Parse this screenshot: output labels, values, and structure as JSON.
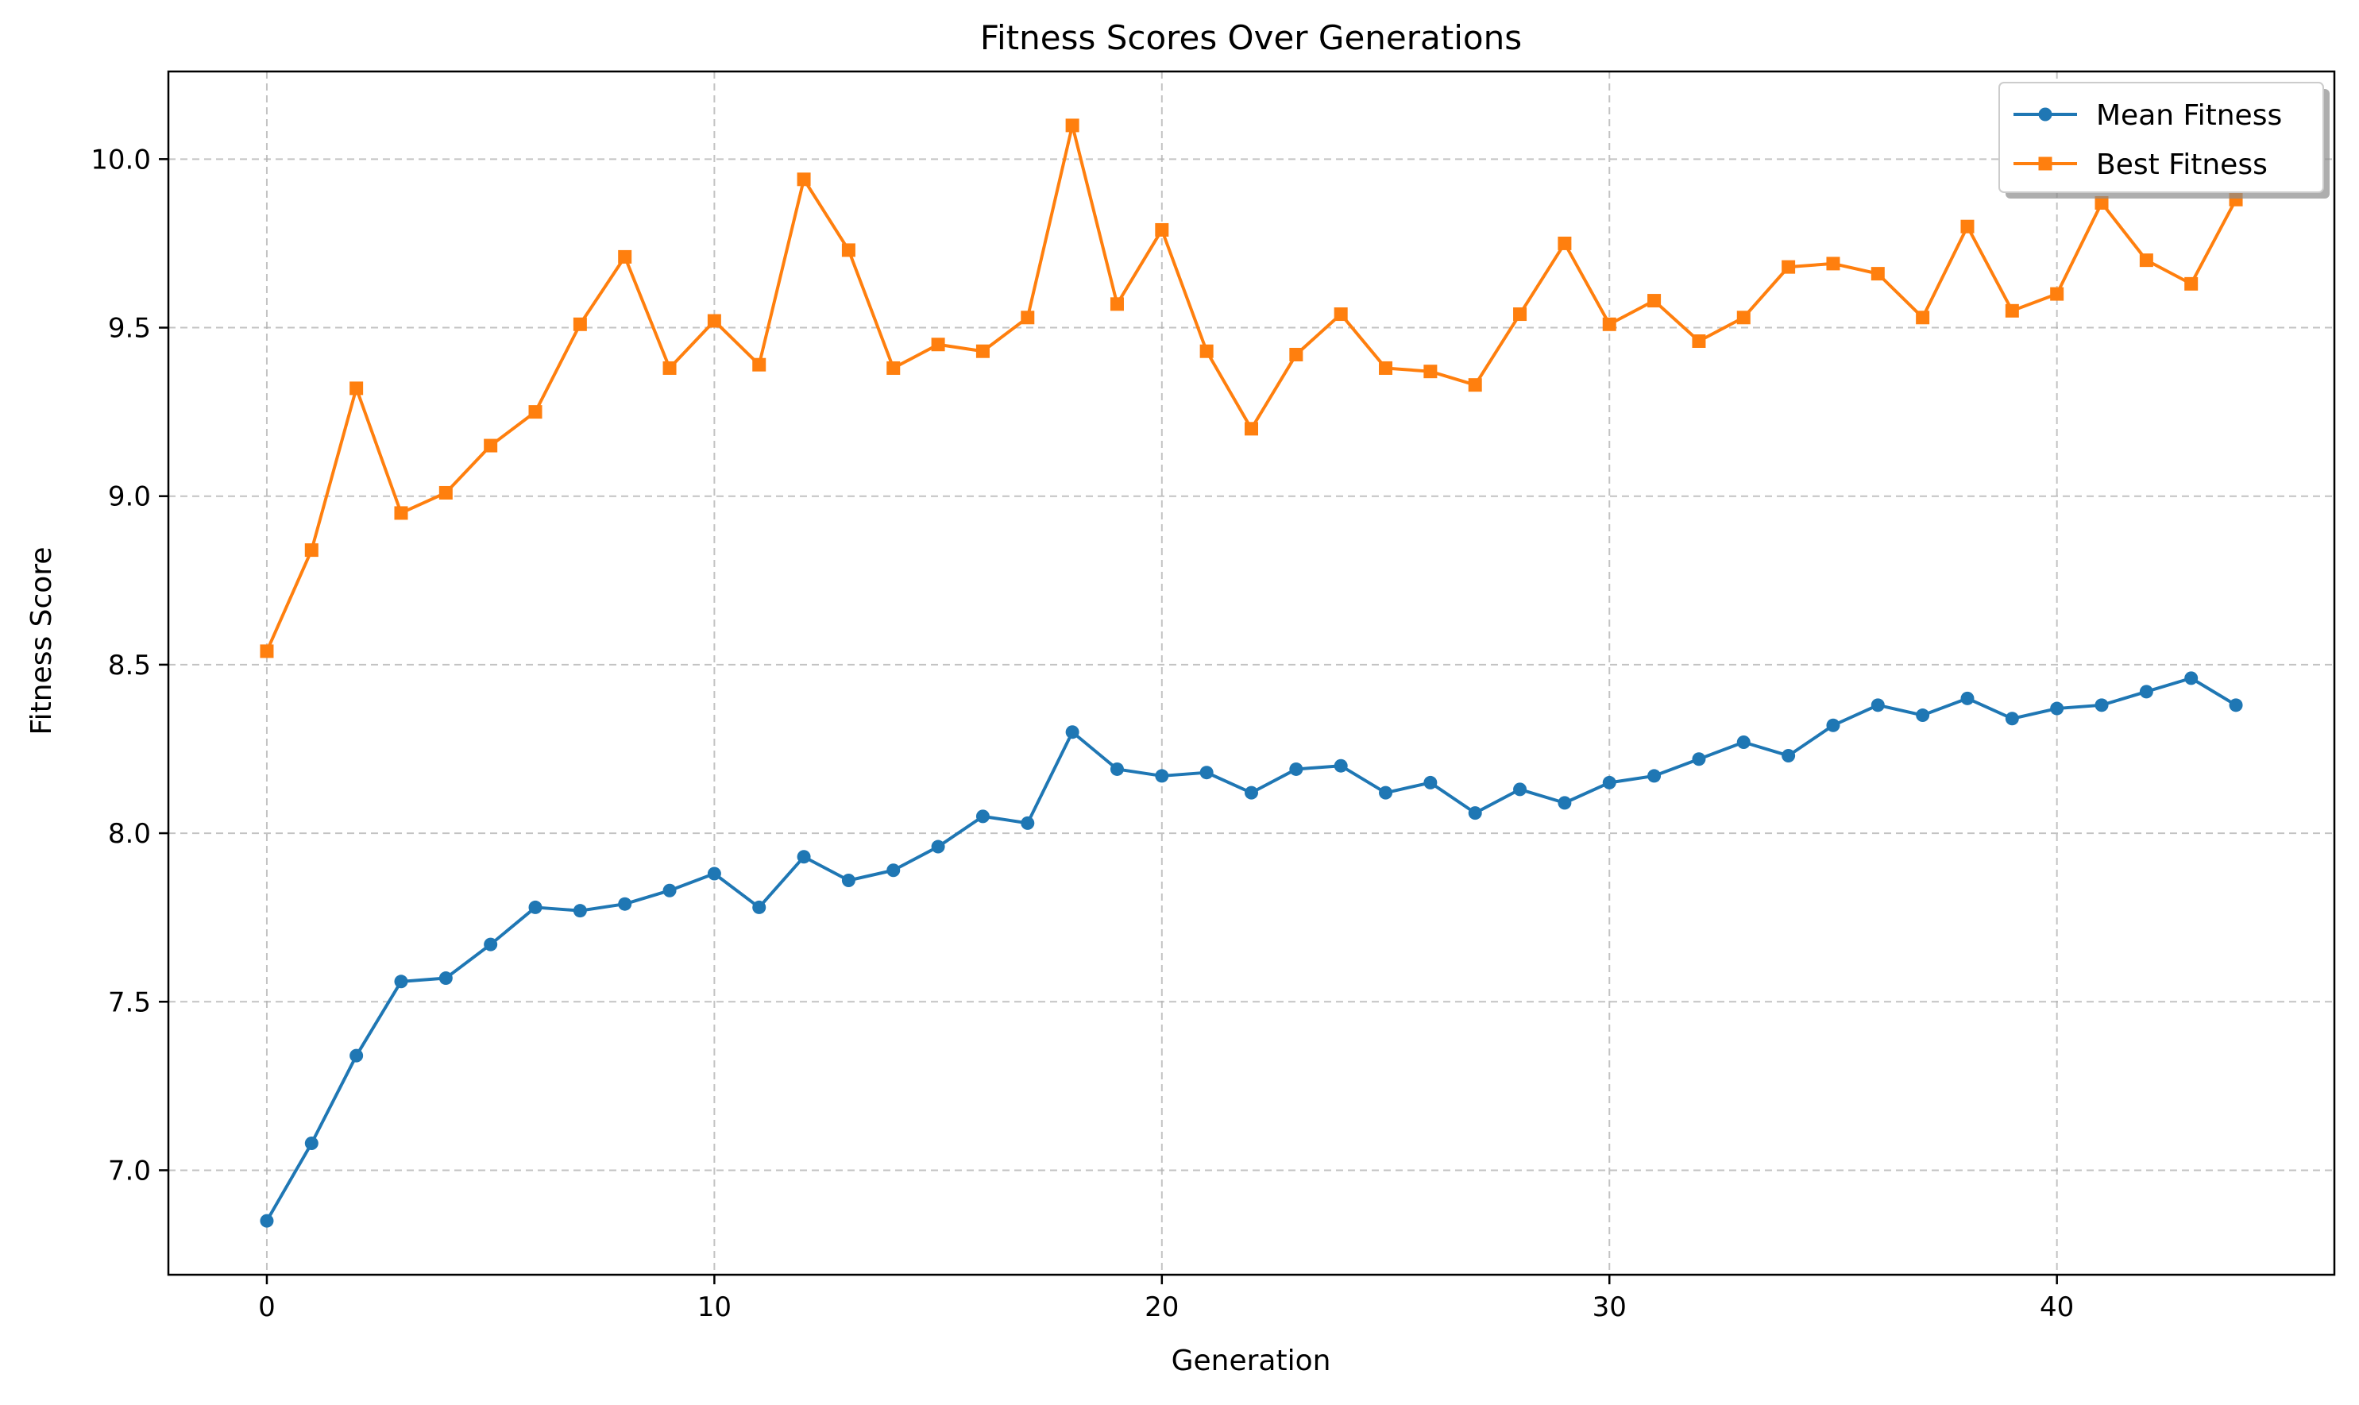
{
  "chart_data": {
    "type": "line",
    "title": "Fitness Scores Over Generations",
    "xlabel": "Generation",
    "ylabel": "Fitness Score",
    "xlim": [
      -2.2,
      46.2
    ],
    "ylim": [
      6.69,
      10.26
    ],
    "xticks": [
      0,
      10,
      20,
      30,
      40
    ],
    "xtick_labels": [
      "0",
      "10",
      "20",
      "30",
      "40"
    ],
    "yticks": [
      7.0,
      7.5,
      8.0,
      8.5,
      9.0,
      9.5,
      10.0
    ],
    "ytick_labels": [
      "7.0",
      "7.5",
      "8.0",
      "8.5",
      "9.0",
      "9.5",
      "10.0"
    ],
    "grid": true,
    "legend_position": "top-right",
    "x": [
      0,
      1,
      2,
      3,
      4,
      5,
      6,
      7,
      8,
      9,
      10,
      11,
      12,
      13,
      14,
      15,
      16,
      17,
      18,
      19,
      20,
      21,
      22,
      23,
      24,
      25,
      26,
      27,
      28,
      29,
      30,
      31,
      32,
      33,
      34,
      35,
      36,
      37,
      38,
      39,
      40,
      41,
      42,
      43,
      44
    ],
    "series": [
      {
        "name": "Mean Fitness",
        "color": "#1f77b4",
        "marker": "circle",
        "values": [
          6.85,
          7.08,
          7.34,
          7.56,
          7.57,
          7.67,
          7.78,
          7.77,
          7.79,
          7.83,
          7.88,
          7.78,
          7.93,
          7.86,
          7.89,
          7.96,
          8.05,
          8.03,
          8.3,
          8.19,
          8.17,
          8.18,
          8.12,
          8.19,
          8.2,
          8.12,
          8.15,
          8.06,
          8.13,
          8.09,
          8.15,
          8.17,
          8.22,
          8.27,
          8.23,
          8.32,
          8.38,
          8.35,
          8.4,
          8.34,
          8.37,
          8.38,
          8.42,
          8.46,
          8.38
        ]
      },
      {
        "name": "Best Fitness",
        "color": "#ff7f0e",
        "marker": "square",
        "values": [
          8.54,
          8.84,
          9.32,
          8.95,
          9.01,
          9.15,
          9.25,
          9.51,
          9.71,
          9.38,
          9.52,
          9.39,
          9.94,
          9.73,
          9.38,
          9.45,
          9.43,
          9.53,
          10.1,
          9.57,
          9.79,
          9.43,
          9.2,
          9.42,
          9.54,
          9.38,
          9.37,
          9.33,
          9.54,
          9.75,
          9.51,
          9.58,
          9.46,
          9.53,
          9.68,
          9.69,
          9.66,
          9.53,
          9.8,
          9.55,
          9.6,
          9.87,
          9.7,
          9.63,
          9.88
        ]
      }
    ]
  }
}
